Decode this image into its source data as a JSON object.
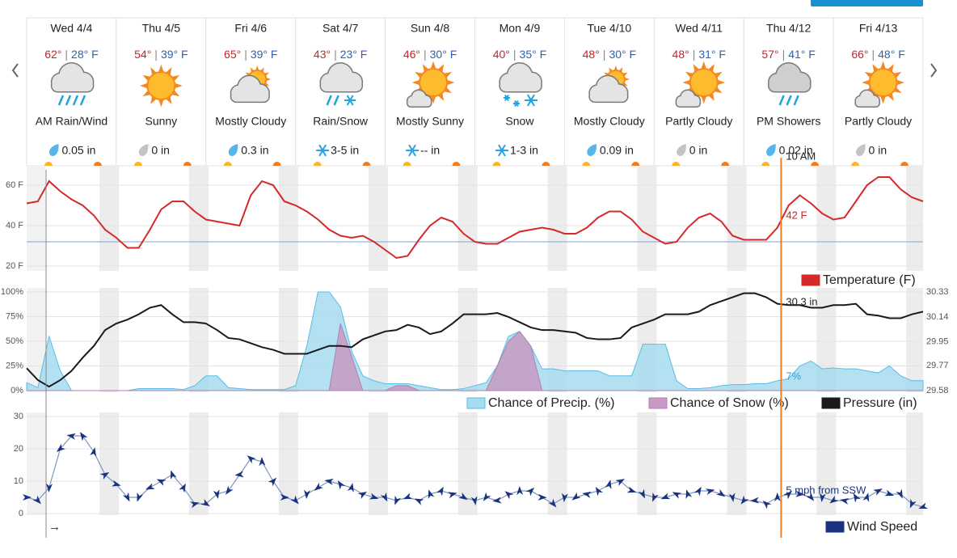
{
  "days": [
    {
      "label": "Wed 4/4",
      "high": "62°",
      "low": "28° F",
      "condition": "AM Rain/Wind",
      "precip": "0.05 in",
      "icon": "rain",
      "precip_icon": "drop"
    },
    {
      "label": "Thu 4/5",
      "high": "54°",
      "low": "39° F",
      "condition": "Sunny",
      "precip": "0 in",
      "icon": "sunny",
      "precip_icon": "drop-gray"
    },
    {
      "label": "Fri 4/6",
      "high": "65°",
      "low": "39° F",
      "condition": "Mostly Cloudy",
      "precip": "0.3 in",
      "icon": "mostly-cloudy",
      "precip_icon": "drop"
    },
    {
      "label": "Sat 4/7",
      "high": "43°",
      "low": "23° F",
      "condition": "Rain/Snow",
      "precip": "3-5 in",
      "icon": "rain-snow",
      "precip_icon": "snow"
    },
    {
      "label": "Sun 4/8",
      "high": "46°",
      "low": "30° F",
      "condition": "Mostly Sunny",
      "precip": "-- in",
      "icon": "mostly-sunny",
      "precip_icon": "snow"
    },
    {
      "label": "Mon 4/9",
      "high": "40°",
      "low": "35° F",
      "condition": "Snow",
      "precip": "1-3 in",
      "icon": "snow",
      "precip_icon": "snow"
    },
    {
      "label": "Tue 4/10",
      "high": "48°",
      "low": "30° F",
      "condition": "Mostly Cloudy",
      "precip": "0.09 in",
      "icon": "mostly-cloudy",
      "precip_icon": "drop"
    },
    {
      "label": "Wed 4/11",
      "high": "48°",
      "low": "31° F",
      "condition": "Partly Cloudy",
      "precip": "0 in",
      "icon": "partly-cloudy",
      "precip_icon": "drop-gray"
    },
    {
      "label": "Thu 4/12",
      "high": "57°",
      "low": "41° F",
      "condition": "PM Showers",
      "precip": "0.02 in",
      "icon": "showers",
      "precip_icon": "drop"
    },
    {
      "label": "Fri 4/13",
      "high": "66°",
      "low": "48° F",
      "condition": "Partly Cloudy",
      "precip": "0 in",
      "icon": "partly-cloudy",
      "precip_icon": "drop-gray"
    }
  ],
  "temp_separator": "|",
  "now": {
    "x": 202,
    "label": "10 AM"
  },
  "footer_arrow": "→",
  "chart_data": [
    {
      "type": "line",
      "xlim": [
        0,
        240
      ],
      "ylim": [
        18,
        68
      ],
      "yticks": [
        {
          "value": 20,
          "label": "20 F"
        },
        {
          "value": 40,
          "label": "40 F"
        },
        {
          "value": 60,
          "label": "60 F"
        }
      ],
      "grid": true,
      "reference_line": 32,
      "annotation": "42 F",
      "x": [
        0,
        3,
        6,
        9,
        12,
        15,
        18,
        21,
        24,
        27,
        30,
        33,
        36,
        39,
        42,
        45,
        48,
        51,
        54,
        57,
        60,
        63,
        66,
        69,
        72,
        75,
        78,
        81,
        84,
        87,
        90,
        93,
        96,
        99,
        102,
        105,
        108,
        111,
        114,
        117,
        120,
        123,
        126,
        129,
        132,
        135,
        138,
        141,
        144,
        147,
        150,
        153,
        156,
        159,
        162,
        165,
        168,
        171,
        174,
        177,
        180,
        183,
        186,
        189,
        192,
        195,
        198,
        201,
        204,
        207,
        210,
        213,
        216,
        219,
        222,
        225,
        228,
        231,
        234,
        237,
        240
      ],
      "series": [
        {
          "name": "Temperature (F)",
          "color": "#d42a2a",
          "style": "line",
          "values": [
            51,
            52,
            62,
            57,
            53,
            50,
            45,
            38,
            34,
            29,
            29,
            38,
            48,
            52,
            52,
            47,
            43,
            42,
            41,
            40,
            55,
            62,
            60,
            52,
            50,
            47,
            43,
            38,
            35,
            34,
            35,
            32,
            28,
            24,
            25,
            33,
            40,
            44,
            42,
            36,
            32,
            31,
            31,
            34,
            37,
            38,
            39,
            38,
            36,
            36,
            39,
            44,
            47,
            47,
            43,
            37,
            34,
            31,
            32,
            39,
            44,
            46,
            42,
            35,
            33,
            33,
            33,
            39,
            50,
            55,
            51,
            46,
            43,
            44,
            52,
            60,
            64,
            64,
            58,
            54,
            52
          ]
        }
      ]
    },
    {
      "type": "combo",
      "xlim": [
        0,
        240
      ],
      "ylim": [
        0,
        100
      ],
      "yticks": [
        {
          "value": 0,
          "label": "0%"
        },
        {
          "value": 25,
          "label": "25%"
        },
        {
          "value": 50,
          "label": "50%"
        },
        {
          "value": 75,
          "label": "75%"
        },
        {
          "value": 100,
          "label": "100%"
        }
      ],
      "y2lim": [
        29.58,
        30.33
      ],
      "y2ticks": [
        29.58,
        29.77,
        29.95,
        30.14,
        30.33
      ],
      "grid": true,
      "annotation": "30.3 in",
      "annotation2": "7%",
      "x": [
        0,
        3,
        6,
        9,
        12,
        15,
        18,
        21,
        24,
        27,
        30,
        33,
        36,
        39,
        42,
        45,
        48,
        51,
        54,
        57,
        60,
        63,
        66,
        69,
        72,
        75,
        78,
        81,
        84,
        87,
        90,
        93,
        96,
        99,
        102,
        105,
        108,
        111,
        114,
        117,
        120,
        123,
        126,
        129,
        132,
        135,
        138,
        141,
        144,
        147,
        150,
        153,
        156,
        159,
        162,
        165,
        168,
        171,
        174,
        177,
        180,
        183,
        186,
        189,
        192,
        195,
        198,
        201,
        204,
        207,
        210,
        213,
        216,
        219,
        222,
        225,
        228,
        231,
        234,
        237,
        240
      ],
      "series": [
        {
          "name": "Chance of Precip. (%)",
          "color": "#a6dcf0",
          "stroke": "#58bde3",
          "style": "area",
          "values": [
            8,
            3,
            55,
            20,
            0,
            0,
            0,
            0,
            0,
            0,
            2,
            2,
            2,
            2,
            1,
            5,
            15,
            15,
            3,
            2,
            1,
            1,
            1,
            1,
            5,
            45,
            100,
            100,
            85,
            40,
            15,
            10,
            7,
            7,
            7,
            5,
            3,
            1,
            1,
            2,
            5,
            8,
            25,
            55,
            60,
            45,
            22,
            22,
            20,
            20,
            20,
            20,
            15,
            15,
            15,
            47,
            47,
            47,
            10,
            2,
            2,
            3,
            5,
            6,
            6,
            7,
            7,
            10,
            12,
            25,
            30,
            22,
            23,
            22,
            22,
            20,
            18,
            25,
            15,
            10,
            10
          ]
        },
        {
          "name": "Chance of Snow (%)",
          "color": "#c79ac3",
          "stroke": "#b07fb0",
          "style": "area",
          "values": [
            0,
            0,
            0,
            0,
            0,
            0,
            0,
            0,
            0,
            0,
            0,
            0,
            0,
            0,
            0,
            0,
            0,
            0,
            0,
            0,
            0,
            0,
            0,
            0,
            0,
            0,
            0,
            0,
            68,
            35,
            0,
            0,
            0,
            5,
            5,
            0,
            0,
            0,
            0,
            0,
            0,
            0,
            25,
            50,
            60,
            45,
            0,
            0,
            0,
            0,
            0,
            0,
            0,
            0,
            0,
            0,
            0,
            0,
            0,
            0,
            0,
            0,
            0,
            0,
            0,
            0,
            0,
            0,
            0,
            0,
            0,
            0,
            0,
            0,
            0,
            0,
            0,
            0,
            0,
            0,
            0
          ]
        },
        {
          "name": "Pressure (in)",
          "color": "#1a1a1a",
          "style": "line",
          "axis": "y2",
          "values": [
            29.75,
            29.66,
            29.61,
            29.66,
            29.73,
            29.83,
            29.92,
            30.04,
            30.09,
            30.12,
            30.16,
            30.21,
            30.23,
            30.16,
            30.1,
            30.1,
            30.09,
            30.04,
            29.98,
            29.97,
            29.94,
            29.91,
            29.89,
            29.86,
            29.86,
            29.86,
            29.89,
            29.92,
            29.92,
            29.91,
            29.97,
            30.0,
            30.03,
            30.04,
            30.08,
            30.06,
            30.01,
            30.03,
            30.09,
            30.16,
            30.16,
            30.16,
            30.17,
            30.14,
            30.1,
            30.06,
            30.04,
            30.04,
            30.03,
            30.02,
            29.98,
            29.97,
            29.97,
            29.98,
            30.06,
            30.09,
            30.12,
            30.16,
            30.16,
            30.16,
            30.18,
            30.23,
            30.26,
            30.29,
            30.32,
            30.32,
            30.29,
            30.24,
            30.23,
            30.23,
            30.21,
            30.21,
            30.23,
            30.23,
            30.24,
            30.16,
            30.15,
            30.13,
            30.13,
            30.16,
            30.18
          ]
        }
      ]
    },
    {
      "type": "wind",
      "xlim": [
        0,
        240
      ],
      "ylim": [
        0,
        30
      ],
      "yticks": [
        0,
        10,
        20,
        30
      ],
      "grid": true,
      "annotation": "5 mph from SSW",
      "x": [
        0,
        3,
        6,
        9,
        12,
        15,
        18,
        21,
        24,
        27,
        30,
        33,
        36,
        39,
        42,
        45,
        48,
        51,
        54,
        57,
        60,
        63,
        66,
        69,
        72,
        75,
        78,
        81,
        84,
        87,
        90,
        93,
        96,
        99,
        102,
        105,
        108,
        111,
        114,
        117,
        120,
        123,
        126,
        129,
        132,
        135,
        138,
        141,
        144,
        147,
        150,
        153,
        156,
        159,
        162,
        165,
        168,
        171,
        174,
        177,
        180,
        183,
        186,
        189,
        192,
        195,
        198,
        201,
        204,
        207,
        210,
        213,
        216,
        219,
        222,
        225,
        228,
        231,
        234,
        237,
        240
      ],
      "series": [
        {
          "name": "Wind Speed",
          "color": "#1a3380",
          "line_color": "#7d97ba",
          "style": "line",
          "values": [
            5,
            4,
            8,
            20,
            24,
            24,
            19,
            12,
            9,
            5,
            5,
            8,
            10,
            12,
            8,
            3,
            3,
            6,
            7,
            12,
            17,
            16,
            10,
            5,
            4,
            6,
            8,
            10,
            9,
            8,
            6,
            5,
            5,
            4,
            5,
            4,
            6,
            7,
            6,
            5,
            4,
            5,
            4,
            6,
            7,
            7,
            5,
            3,
            5,
            5,
            6,
            7,
            9,
            10,
            7,
            6,
            5,
            5,
            6,
            6,
            7,
            7,
            6,
            5,
            4,
            4,
            3,
            5,
            6,
            6,
            5,
            5,
            4,
            4,
            5,
            5,
            7,
            6,
            6,
            3,
            2
          ]
        }
      ]
    }
  ]
}
